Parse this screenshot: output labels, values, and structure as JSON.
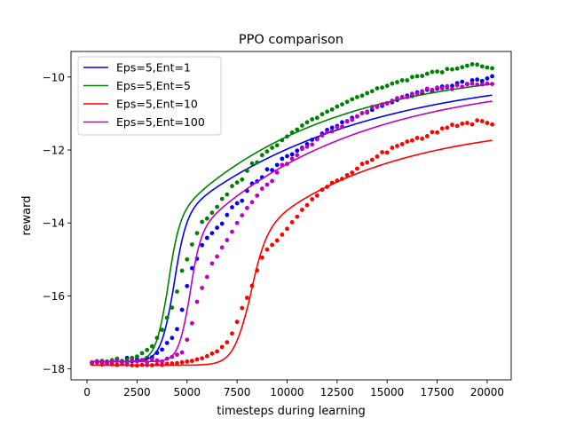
{
  "chart_data": {
    "type": "line",
    "title": "PPO comparison",
    "xlabel": "timesteps during learning",
    "ylabel": "reward",
    "xlim": [
      -800,
      21200
    ],
    "ylim": [
      -18.3,
      -9.3
    ],
    "xticks": [
      0,
      2500,
      5000,
      7500,
      10000,
      12500,
      15000,
      17500,
      20000
    ],
    "yticks": [
      -18,
      -16,
      -14,
      -12,
      -10
    ],
    "grid": false,
    "legend": "top-left",
    "series": [
      {
        "name": "Eps=5,Ent=1",
        "color": "#0000ff",
        "fit": {
          "base": -17.8,
          "A": 3.9,
          "c": 4300,
          "w": 320,
          "B": 4.1,
          "tau": 9000
        },
        "points_x": [
          250,
          500,
          750,
          1000,
          1250,
          1500,
          1750,
          2000,
          2250,
          2500,
          2750,
          3000,
          3250,
          3500,
          3750,
          4000,
          4250,
          4500,
          4750,
          5000,
          5250,
          5500,
          5750,
          6000,
          6250,
          6500,
          6750,
          7000,
          7250,
          7500,
          7750,
          8000,
          8250,
          8500,
          8750,
          9000,
          9250,
          9500,
          9750,
          10000,
          10250,
          10500,
          10750,
          11000,
          11250,
          11500,
          11750,
          12000,
          12250,
          12500,
          12750,
          13000,
          13250,
          13500,
          13750,
          14000,
          14250,
          14500,
          14750,
          15000,
          15250,
          15500,
          15750,
          16000,
          16250,
          16500,
          16750,
          17000,
          17250,
          17500,
          17750,
          18000,
          18250,
          18500,
          18750,
          19000,
          19250,
          19500,
          19750,
          20000,
          20250
        ],
        "points_y": [
          -17.84,
          -17.79,
          -17.82,
          -17.8,
          -17.79,
          -17.74,
          -17.8,
          -17.7,
          -17.79,
          -17.73,
          -17.76,
          -17.7,
          -17.68,
          -17.56,
          -17.47,
          -17.29,
          -17.15,
          -16.91,
          -16.38,
          -15.73,
          -15.24,
          -14.98,
          -14.61,
          -14.41,
          -14.28,
          -14.13,
          -14.02,
          -13.78,
          -13.57,
          -13.46,
          -13.39,
          -13.12,
          -12.92,
          -12.86,
          -12.75,
          -12.53,
          -12.55,
          -12.41,
          -12.24,
          -12.17,
          -12.12,
          -12.02,
          -11.94,
          -11.84,
          -11.72,
          -11.68,
          -11.55,
          -11.45,
          -11.39,
          -11.34,
          -11.24,
          -11.21,
          -11.12,
          -11.08,
          -10.99,
          -10.97,
          -10.9,
          -10.82,
          -10.79,
          -10.72,
          -10.69,
          -10.63,
          -10.55,
          -10.51,
          -10.52,
          -10.42,
          -10.45,
          -10.35,
          -10.39,
          -10.32,
          -10.26,
          -10.28,
          -10.24,
          -10.17,
          -10.13,
          -10.19,
          -10.09,
          -10.07,
          -10.11,
          -10.04,
          -9.98
        ]
      },
      {
        "name": "Eps=5,Ent=5",
        "color": "#008000",
        "fit": {
          "base": -17.8,
          "A": 3.8,
          "c": 4000,
          "w": 300,
          "B": 4.3,
          "tau": 7500
        },
        "points_x": [
          250,
          500,
          750,
          1000,
          1250,
          1500,
          1750,
          2000,
          2250,
          2500,
          2750,
          3000,
          3250,
          3500,
          3750,
          4000,
          4250,
          4500,
          4750,
          5000,
          5250,
          5500,
          5750,
          6000,
          6250,
          6500,
          6750,
          7000,
          7250,
          7500,
          7750,
          8000,
          8250,
          8500,
          8750,
          9000,
          9250,
          9500,
          9750,
          10000,
          10250,
          10500,
          10750,
          11000,
          11250,
          11500,
          11750,
          12000,
          12250,
          12500,
          12750,
          13000,
          13250,
          13500,
          13750,
          14000,
          14250,
          14500,
          14750,
          15000,
          15250,
          15500,
          15750,
          16000,
          16250,
          16500,
          16750,
          17000,
          17250,
          17500,
          17750,
          18000,
          18250,
          18500,
          18750,
          19000,
          19250,
          19500,
          19750,
          20000,
          20250
        ],
        "points_y": [
          -17.82,
          -17.8,
          -17.78,
          -17.8,
          -17.76,
          -17.72,
          -17.78,
          -17.75,
          -17.7,
          -17.66,
          -17.57,
          -17.48,
          -17.38,
          -17.15,
          -16.93,
          -16.6,
          -16.32,
          -15.88,
          -15.31,
          -15.0,
          -14.59,
          -14.28,
          -13.97,
          -13.88,
          -13.72,
          -13.56,
          -13.34,
          -13.22,
          -12.99,
          -12.89,
          -12.81,
          -12.57,
          -12.37,
          -12.34,
          -12.14,
          -12.04,
          -11.94,
          -11.87,
          -11.73,
          -11.63,
          -11.52,
          -11.44,
          -11.33,
          -11.24,
          -11.16,
          -11.12,
          -11.02,
          -10.95,
          -10.89,
          -10.81,
          -10.75,
          -10.68,
          -10.61,
          -10.55,
          -10.51,
          -10.44,
          -10.39,
          -10.31,
          -10.29,
          -10.24,
          -10.18,
          -10.14,
          -10.09,
          -10.09,
          -10.0,
          -9.98,
          -9.97,
          -9.91,
          -9.86,
          -9.85,
          -9.87,
          -9.78,
          -9.79,
          -9.77,
          -9.73,
          -9.69,
          -9.65,
          -9.66,
          -9.71,
          -9.74,
          -9.76
        ]
      },
      {
        "name": "Eps=5,Ent=10",
        "color": "#ff0000",
        "fit": {
          "base": -17.9,
          "A": 3.5,
          "c": 8100,
          "w": 420,
          "B": 3.2,
          "tau": 6800
        },
        "points_x": [
          250,
          500,
          750,
          1000,
          1250,
          1500,
          1750,
          2000,
          2250,
          2500,
          2750,
          3000,
          3250,
          3500,
          3750,
          4000,
          4250,
          4500,
          4750,
          5000,
          5250,
          5500,
          5750,
          6000,
          6250,
          6500,
          6750,
          7000,
          7250,
          7500,
          7750,
          8000,
          8250,
          8500,
          8750,
          9000,
          9250,
          9500,
          9750,
          10000,
          10250,
          10500,
          10750,
          11000,
          11250,
          11500,
          11750,
          12000,
          12250,
          12500,
          12750,
          13000,
          13250,
          13500,
          13750,
          14000,
          14250,
          14500,
          14750,
          15000,
          15250,
          15500,
          15750,
          16000,
          16250,
          16500,
          16750,
          17000,
          17250,
          17500,
          17750,
          18000,
          18250,
          18500,
          18750,
          19000,
          19250,
          19500,
          19750,
          20000,
          20250
        ],
        "points_y": [
          -17.86,
          -17.83,
          -17.88,
          -17.85,
          -17.87,
          -17.89,
          -17.86,
          -17.88,
          -17.9,
          -17.91,
          -17.89,
          -17.89,
          -17.9,
          -17.87,
          -17.89,
          -17.86,
          -17.85,
          -17.84,
          -17.82,
          -17.8,
          -17.78,
          -17.74,
          -17.71,
          -17.65,
          -17.58,
          -17.52,
          -17.4,
          -17.27,
          -17.03,
          -16.71,
          -16.33,
          -16.05,
          -15.72,
          -15.3,
          -14.95,
          -14.73,
          -14.6,
          -14.48,
          -14.32,
          -14.16,
          -13.98,
          -13.83,
          -13.64,
          -13.51,
          -13.35,
          -13.25,
          -13.09,
          -13.01,
          -12.9,
          -12.84,
          -12.79,
          -12.69,
          -12.62,
          -12.51,
          -12.38,
          -12.34,
          -12.27,
          -12.18,
          -12.06,
          -12.07,
          -11.94,
          -11.89,
          -11.84,
          -11.77,
          -11.74,
          -11.67,
          -11.69,
          -11.62,
          -11.51,
          -11.52,
          -11.41,
          -11.39,
          -11.31,
          -11.34,
          -11.28,
          -11.26,
          -11.3,
          -11.19,
          -11.21,
          -11.26,
          -11.3
        ]
      },
      {
        "name": "Eps=5,Ent=100",
        "color": "#bf00bf",
        "fit": {
          "base": -17.8,
          "A": 3.4,
          "c": 5100,
          "w": 280,
          "B": 4.4,
          "tau": 8000
        },
        "points_x": [
          250,
          500,
          750,
          1000,
          1250,
          1500,
          1750,
          2000,
          2250,
          2500,
          2750,
          3000,
          3250,
          3500,
          3750,
          4000,
          4250,
          4500,
          4750,
          5000,
          5250,
          5500,
          5750,
          6000,
          6250,
          6500,
          6750,
          7000,
          7250,
          7500,
          7750,
          8000,
          8250,
          8500,
          8750,
          9000,
          9250,
          9500,
          9750,
          10000,
          10250,
          10500,
          10750,
          11000,
          11250,
          11500,
          11750,
          12000,
          12250,
          12500,
          12750,
          13000,
          13250,
          13500,
          13750,
          14000,
          14250,
          14500,
          14750,
          15000,
          15250,
          15500,
          15750,
          16000,
          16250,
          16500,
          16750,
          17000,
          17250,
          17500,
          17750,
          18000,
          18250,
          18500,
          18750,
          19000,
          19250,
          19500,
          19750,
          20000,
          20250
        ],
        "points_y": [
          -17.82,
          -17.79,
          -17.81,
          -17.84,
          -17.8,
          -17.78,
          -17.81,
          -17.85,
          -17.77,
          -17.79,
          -17.76,
          -17.82,
          -17.74,
          -17.77,
          -17.8,
          -17.72,
          -17.67,
          -17.61,
          -17.55,
          -17.2,
          -16.75,
          -16.16,
          -15.78,
          -15.48,
          -15.11,
          -14.92,
          -14.67,
          -14.47,
          -14.24,
          -14.0,
          -13.79,
          -13.59,
          -13.43,
          -13.25,
          -13.06,
          -12.95,
          -12.85,
          -12.62,
          -12.41,
          -12.38,
          -12.24,
          -12.14,
          -11.97,
          -11.91,
          -11.85,
          -11.71,
          -11.6,
          -11.51,
          -11.49,
          -11.37,
          -11.36,
          -11.22,
          -11.17,
          -11.08,
          -10.99,
          -10.95,
          -10.82,
          -10.82,
          -10.75,
          -10.72,
          -10.65,
          -10.58,
          -10.56,
          -10.55,
          -10.46,
          -10.45,
          -10.39,
          -10.32,
          -10.35,
          -10.29,
          -10.31,
          -10.25,
          -10.33,
          -10.23,
          -10.27,
          -10.2,
          -10.18,
          -10.21,
          -10.2,
          -10.18,
          -10.19
        ]
      }
    ]
  }
}
